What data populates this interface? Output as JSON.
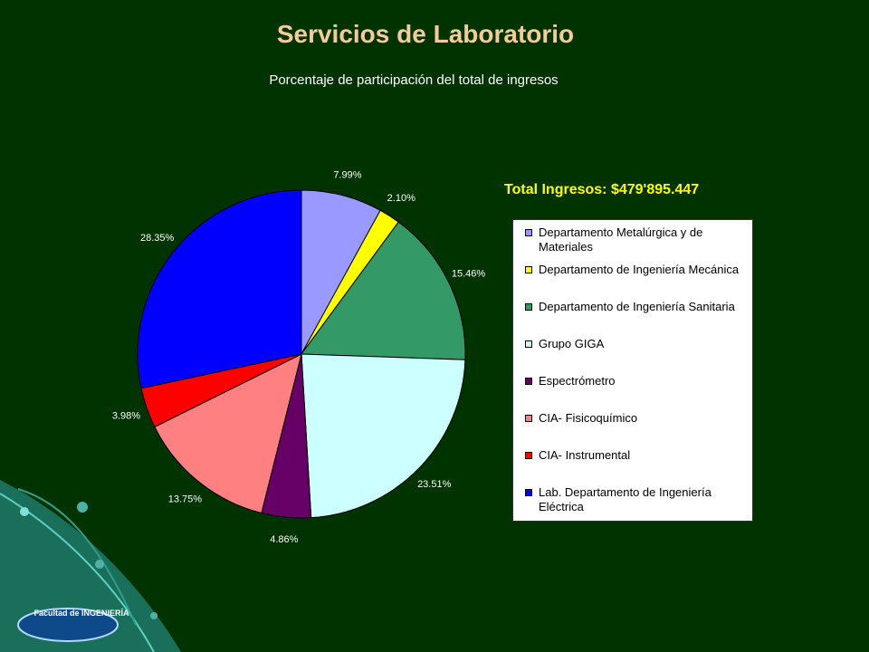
{
  "header": {
    "title": "Servicios de Laboratorio",
    "subtitle": "Porcentaje de participación del total de ingresos"
  },
  "total_label": "Total Ingresos: $479'895.447",
  "logo_text": "Facultad de INGENIERÍA",
  "chart_data": {
    "type": "pie",
    "title": "Servicios de Laboratorio",
    "subtitle": "Porcentaje de participación del total de ingresos",
    "legend_position": "right",
    "slices": [
      {
        "label": "Departamento Metalúrgica y de Materiales",
        "value": 7.99,
        "value_label": "7.99%",
        "color": "#9999ff"
      },
      {
        "label": "Departamento de Ingeniería Mecánica",
        "value": 2.1,
        "value_label": "2.10%",
        "color": "#ffff00"
      },
      {
        "label": "Departamento de Ingeniería Sanitaria",
        "value": 15.46,
        "value_label": "15.46%",
        "color": "#339966"
      },
      {
        "label": "Grupo GIGA",
        "value": 23.51,
        "value_label": "23.51%",
        "color": "#ccffff"
      },
      {
        "label": "Espectrómetro",
        "value": 4.86,
        "value_label": "4.86%",
        "color": "#660066"
      },
      {
        "label": "CIA- Fisicoquímico",
        "value": 13.75,
        "value_label": "13.75%",
        "color": "#ff8080"
      },
      {
        "label": "CIA- Instrumental",
        "value": 3.98,
        "value_label": "3.98%",
        "color": "#ff0000"
      },
      {
        "label": "Lab. Departamento de Ingeniería Eléctrica",
        "value": 28.35,
        "value_label": "28.35%",
        "color": "#0000ff"
      }
    ]
  }
}
